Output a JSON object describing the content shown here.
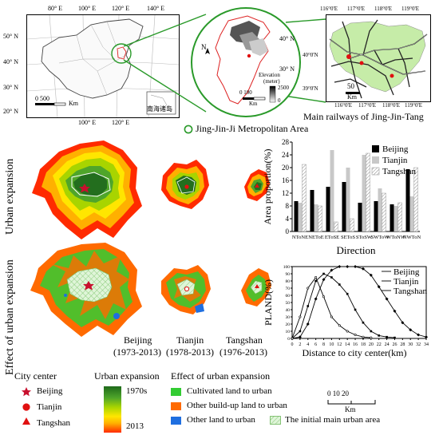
{
  "maps": {
    "china": {
      "lon_labels": [
        "80° E",
        "100° E",
        "120° E",
        "140° E"
      ],
      "lon_labels_bottom": [
        "100° E",
        "120° E"
      ],
      "lat_labels": [
        "50° N",
        "40° N",
        "30° N",
        "20° N"
      ],
      "scale_label": "0  500",
      "scale_unit": "Km",
      "inset_label": "南海诸岛"
    },
    "region": {
      "lat_labels": [
        "40° N",
        "30° N"
      ],
      "north": "N",
      "elevation_title": "Elevation",
      "elevation_unit": "(meter)",
      "elevation_max": "2500",
      "elevation_min": "0",
      "scale_label": "0   100",
      "scale_unit": "Km"
    },
    "railway": {
      "lon_labels": [
        "116°0'E",
        "117°0'E",
        "118°0'E",
        "119°0'E"
      ],
      "lon_labels_bottom": [
        "116°0'E",
        "117°0'E",
        "118°0'E",
        "119°0'E"
      ],
      "lat_labels": [
        "40°0'N",
        "39°0'N"
      ],
      "scale_label": "50",
      "scale_unit": "Km",
      "caption": "Main railways of Jing-Jin-Tang"
    },
    "metro_legend": "Jing-Jin-Ji Metropolitan Area"
  },
  "panels": {
    "row1_label": "Urban expansion",
    "row2_label": "Effect of urban expansion",
    "cities": [
      {
        "name": "Beijing",
        "period": "(1973-2013)"
      },
      {
        "name": "Tianjin",
        "period": "(1978-2013)"
      },
      {
        "name": "Tangshan",
        "period": "(1976-2013)"
      }
    ]
  },
  "legend": {
    "city_center_title": "City center",
    "city_center_items": [
      {
        "label": "Beijing",
        "symbol": "star",
        "color": "#c8102e"
      },
      {
        "label": "Tianjin",
        "symbol": "circle",
        "color": "#e01010"
      },
      {
        "label": "Tangshan",
        "symbol": "triangle",
        "color": "#e01010"
      }
    ],
    "expansion_title": "Urban expansion",
    "expansion_top": "1970s",
    "expansion_bottom": "2013",
    "effect_title": "Effect of urban expansion",
    "effect_items": [
      {
        "label": "Cultivated land to urban",
        "color": "#33cc33"
      },
      {
        "label": "Other build-up land  to urban",
        "color": "#ff6a00"
      },
      {
        "label": "Other land  to urban",
        "color": "#1f6fe0"
      },
      {
        "label": "The initial main urban area",
        "color": "#c9f0c0"
      }
    ],
    "scale_label": "0     10     20",
    "scale_unit": "Km"
  },
  "chart_data": [
    {
      "type": "bar",
      "ylabel": "Area proportion(%)",
      "xlabel": "Direction",
      "ylim": [
        0,
        28
      ],
      "yticks": [
        0,
        4,
        8,
        12,
        16,
        20,
        24,
        28
      ],
      "categories": [
        "NToNE",
        "NEToE",
        "EToSE",
        "SEToS",
        "SToSW",
        "SWToW",
        "WToNW",
        "NWToN"
      ],
      "series": [
        {
          "name": "Beijing",
          "values": [
            9.5,
            13,
            14,
            15.5,
            9,
            9.5,
            8.5,
            19.5
          ],
          "color": "#000000"
        },
        {
          "name": "Tianjin",
          "values": [
            9,
            8.5,
            25.5,
            20,
            24,
            13.5,
            8,
            11
          ],
          "color": "#c8c8c8"
        },
        {
          "name": "Tangshan",
          "values": [
            21,
            8,
            3,
            4,
            24.5,
            12,
            9,
            20
          ],
          "color": "hatch"
        }
      ]
    },
    {
      "type": "line",
      "ylabel": "PLAND(%)",
      "xlabel": "Distance to city center(km)",
      "xlim": [
        0,
        34
      ],
      "ylim": [
        0,
        100
      ],
      "xticks": [
        0,
        2,
        4,
        6,
        8,
        10,
        12,
        14,
        16,
        18,
        20,
        22,
        24,
        26,
        28,
        30,
        32,
        34
      ],
      "yticks": [
        0,
        10,
        20,
        30,
        40,
        50,
        60,
        70,
        80,
        90,
        100
      ],
      "series": [
        {
          "name": "Beijing",
          "x": [
            0,
            2,
            4,
            6,
            8,
            10,
            12,
            14,
            16,
            18,
            20,
            22,
            24,
            26,
            28,
            30,
            32,
            34
          ],
          "y": [
            0,
            2,
            20,
            55,
            82,
            95,
            100,
            100,
            100,
            97,
            88,
            72,
            55,
            38,
            22,
            12,
            5,
            2
          ]
        },
        {
          "name": "Tianjin",
          "x": [
            0,
            2,
            4,
            6,
            8,
            10,
            12,
            14,
            16,
            18,
            20,
            22,
            24,
            26
          ],
          "y": [
            0,
            10,
            45,
            80,
            90,
            85,
            75,
            62,
            40,
            22,
            10,
            4,
            2,
            1
          ]
        },
        {
          "name": "Tangshan",
          "x": [
            0,
            2,
            4,
            6,
            8,
            10,
            12,
            14,
            16,
            18,
            20
          ],
          "y": [
            0,
            30,
            70,
            85,
            58,
            30,
            18,
            10,
            5,
            2,
            1
          ]
        }
      ]
    }
  ]
}
